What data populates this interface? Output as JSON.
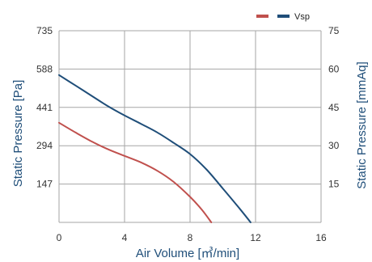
{
  "chart_data": {
    "type": "line",
    "xlabel": "Air Volume [㎥/min]",
    "ylabel": "Static Pressure [Pa]",
    "ylabel_right": "Static Pressure [mmAq]",
    "xlim": [
      0,
      16
    ],
    "ylim": [
      0,
      735
    ],
    "ylim_right": [
      0,
      75
    ],
    "x_ticks": [
      "0",
      "4",
      "8",
      "12",
      "16"
    ],
    "y_ticks": [
      "147",
      "294",
      "441",
      "588",
      "735"
    ],
    "y_ticks_right": [
      "15",
      "30",
      "45",
      "60",
      "75"
    ],
    "grid": true,
    "legend": {
      "placement": "top-right",
      "label": "Vsp"
    },
    "series": [
      {
        "color": "#c0504d",
        "x": [
          0,
          1,
          2,
          3,
          4,
          5,
          6,
          7,
          8,
          8.7,
          9.3
        ],
        "y": [
          382,
          345,
          310,
          280,
          255,
          230,
          198,
          155,
          98,
          50,
          0
        ]
      },
      {
        "color": "#1f4e79",
        "x": [
          0,
          1,
          2,
          3,
          4,
          5,
          6,
          7,
          8,
          9,
          10,
          11,
          11.7
        ],
        "y": [
          565,
          525,
          485,
          445,
          410,
          378,
          345,
          305,
          262,
          203,
          130,
          55,
          0
        ]
      }
    ]
  }
}
